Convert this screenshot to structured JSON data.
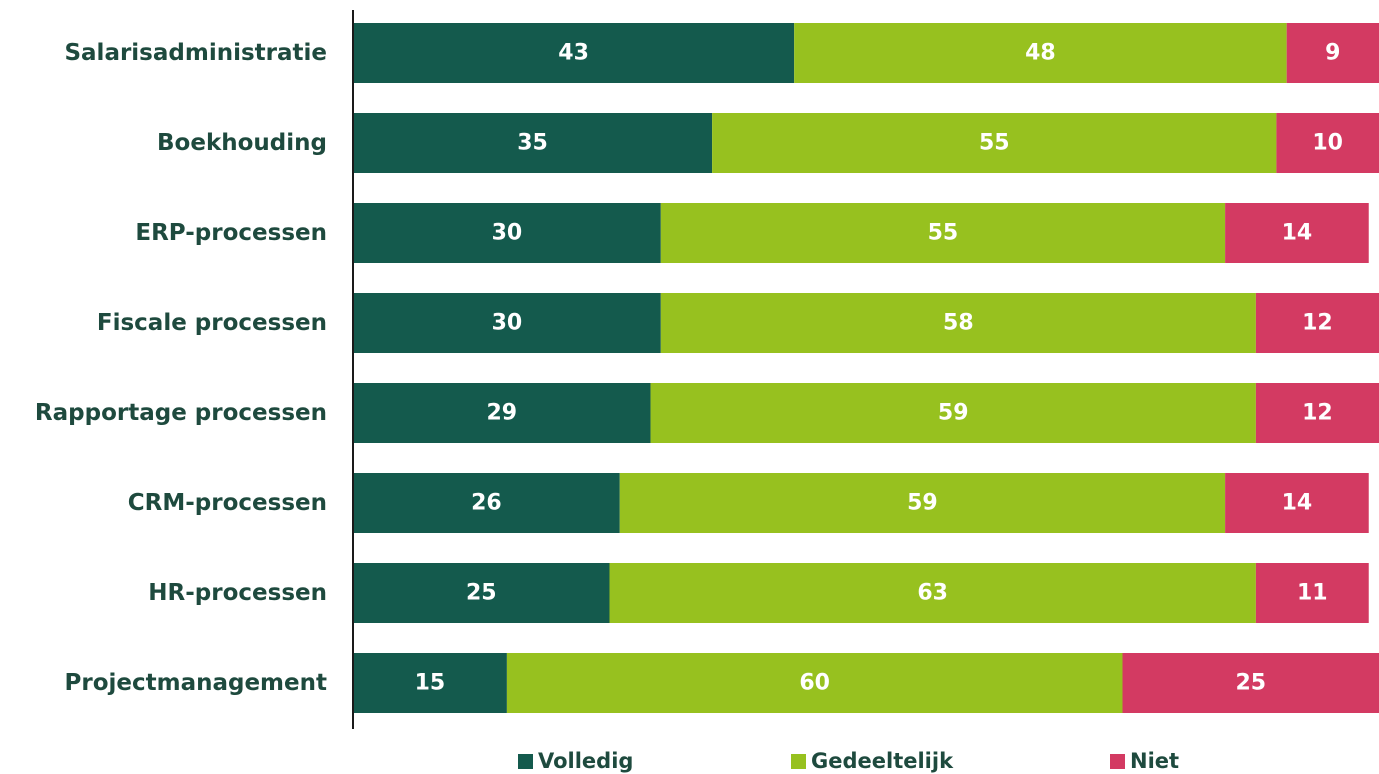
{
  "chart_data": {
    "type": "bar",
    "orientation": "horizontal",
    "stacked": true,
    "categories": [
      "Salarisadministratie",
      "Boekhouding",
      "ERP-processen",
      "Fiscale processen",
      "Rapportage processen",
      "CRM-processen",
      "HR-processen",
      "Projectmanagement"
    ],
    "series": [
      {
        "name": "Volledig",
        "color": "#145a4d",
        "values": [
          43,
          35,
          30,
          30,
          29,
          26,
          25,
          15
        ]
      },
      {
        "name": "Gedeeltelijk",
        "color": "#97c11f",
        "values": [
          48,
          55,
          55,
          58,
          59,
          59,
          63,
          60
        ]
      },
      {
        "name": "Niet",
        "color": "#d33a62",
        "values": [
          9,
          10,
          14,
          12,
          12,
          14,
          11,
          25
        ]
      }
    ],
    "xlim": [
      0,
      100
    ],
    "grid": false,
    "legend": "bottom"
  }
}
